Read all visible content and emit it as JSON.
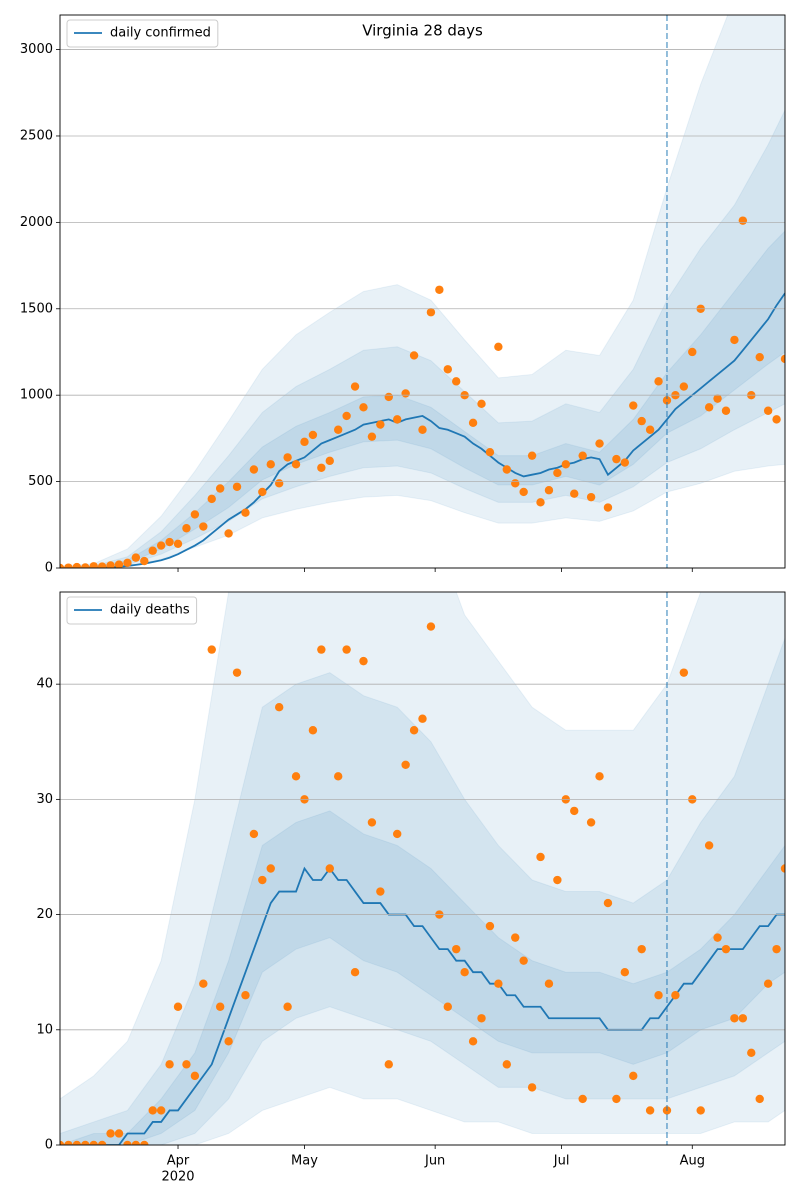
{
  "chart_data": [
    {
      "type": "line",
      "title": "Virginia 28 days",
      "x": [
        0,
        2,
        4,
        6,
        8,
        10,
        12,
        14,
        16,
        18,
        20,
        22,
        24,
        26,
        28,
        30,
        32,
        34,
        36,
        38,
        40,
        42,
        44,
        46,
        48,
        50,
        52,
        54,
        56,
        58,
        60,
        62,
        64,
        66,
        68,
        70,
        72,
        74,
        76,
        78,
        80,
        82,
        84,
        86,
        88,
        90,
        92,
        94,
        96,
        98,
        100,
        102,
        104,
        106,
        108,
        110,
        112,
        114,
        116,
        118,
        120,
        122,
        124,
        126,
        128,
        130,
        132,
        134,
        136,
        138,
        140,
        142,
        144,
        146,
        148,
        150,
        152,
        154,
        156,
        158,
        160,
        162,
        164,
        166,
        168,
        170,
        172
      ],
      "series": [
        {
          "name": "daily confirmed",
          "color": "#1f77b4",
          "values": [
            0,
            0,
            1,
            1,
            2,
            3,
            5,
            8,
            12,
            18,
            25,
            35,
            45,
            60,
            80,
            105,
            130,
            160,
            200,
            240,
            280,
            310,
            340,
            380,
            430,
            480,
            560,
            600,
            620,
            640,
            680,
            720,
            740,
            760,
            780,
            800,
            830,
            840,
            850,
            860,
            840,
            860,
            870,
            880,
            850,
            810,
            800,
            780,
            760,
            720,
            690,
            650,
            610,
            580,
            550,
            530,
            540,
            550,
            570,
            580,
            600,
            610,
            630,
            640,
            630,
            540,
            580,
            620,
            680,
            720,
            760,
            800,
            860,
            920,
            960,
            1000,
            1040,
            1080,
            1120,
            1160,
            1200,
            1260,
            1320,
            1380,
            1440,
            1520,
            1590
          ]
        }
      ],
      "observed": {
        "color": "#ff7f0e",
        "values": [
          0,
          2,
          5,
          3,
          10,
          8,
          15,
          20,
          30,
          60,
          40,
          100,
          130,
          150,
          140,
          230,
          310,
          240,
          400,
          460,
          200,
          470,
          320,
          570,
          440,
          600,
          490,
          640,
          600,
          730,
          770,
          580,
          620,
          800,
          880,
          1050,
          930,
          760,
          830,
          990,
          860,
          1010,
          1230,
          800,
          1480,
          1610,
          1150,
          1080,
          1000,
          840,
          950,
          670,
          1280,
          570,
          490,
          440,
          650,
          380,
          450,
          550,
          600,
          430,
          650,
          410,
          720,
          350,
          630,
          610,
          940,
          850,
          800,
          1080,
          970,
          1000,
          1050,
          1250,
          1500,
          930,
          980,
          910,
          1320,
          2010,
          1000,
          1220,
          910,
          860,
          1210
        ]
      },
      "bands": {
        "color": "#1f77b4",
        "x": [
          0,
          8,
          16,
          24,
          32,
          40,
          48,
          56,
          64,
          72,
          80,
          88,
          96,
          104,
          112,
          120,
          128,
          136,
          144,
          152,
          160,
          168,
          172
        ],
        "levels": [
          {
            "lower": [
              0,
              0,
              8,
              50,
              120,
              190,
              290,
              340,
              380,
              410,
              420,
              390,
              320,
              260,
              260,
              290,
              270,
              330,
              440,
              490,
              560,
              590,
              600
            ],
            "upper": [
              10,
              25,
              110,
              300,
              560,
              850,
              1150,
              1350,
              1480,
              1600,
              1640,
              1550,
              1320,
              1100,
              1120,
              1260,
              1230,
              1550,
              2200,
              2800,
              3300,
              3600,
              3800
            ]
          },
          {
            "lower": [
              0,
              2,
              18,
              80,
              170,
              270,
              400,
              470,
              530,
              580,
              590,
              550,
              460,
              380,
              380,
              420,
              380,
              470,
              610,
              690,
              800,
              900,
              950
            ],
            "upper": [
              5,
              12,
              65,
              210,
              420,
              650,
              900,
              1050,
              1150,
              1260,
              1280,
              1200,
              1020,
              840,
              850,
              950,
              900,
              1150,
              1550,
              1850,
              2100,
              2450,
              2650
            ]
          },
          {
            "lower": [
              0,
              4,
              28,
              110,
              225,
              350,
              510,
              600,
              670,
              730,
              740,
              690,
              580,
              480,
              480,
              530,
              480,
              600,
              780,
              880,
              1030,
              1180,
              1250
            ],
            "upper": [
              2,
              7,
              45,
              160,
              320,
              500,
              700,
              820,
              900,
              990,
              1000,
              930,
              790,
              650,
              650,
              720,
              670,
              860,
              1130,
              1350,
              1600,
              1850,
              1950
            ]
          }
        ]
      },
      "vline_x": 144,
      "xlim": [
        0,
        172
      ],
      "xticks": [
        28,
        58,
        89,
        119,
        150
      ],
      "ylim": [
        0,
        3200
      ],
      "yticks": [
        0,
        500,
        1000,
        1500,
        2000,
        2500,
        3000
      ],
      "grid": true,
      "legend": "upper left"
    },
    {
      "type": "line",
      "x": [
        0,
        2,
        4,
        6,
        8,
        10,
        12,
        14,
        16,
        18,
        20,
        22,
        24,
        26,
        28,
        30,
        32,
        34,
        36,
        38,
        40,
        42,
        44,
        46,
        48,
        50,
        52,
        54,
        56,
        58,
        60,
        62,
        64,
        66,
        68,
        70,
        72,
        74,
        76,
        78,
        80,
        82,
        84,
        86,
        88,
        90,
        92,
        94,
        96,
        98,
        100,
        102,
        104,
        106,
        108,
        110,
        112,
        114,
        116,
        118,
        120,
        122,
        124,
        126,
        128,
        130,
        132,
        134,
        136,
        138,
        140,
        142,
        144,
        146,
        148,
        150,
        152,
        154,
        156,
        158,
        160,
        162,
        164,
        166,
        168,
        170,
        172
      ],
      "series": [
        {
          "name": "daily deaths",
          "color": "#1f77b4",
          "values": [
            0,
            0,
            0,
            0,
            0,
            0,
            0,
            0,
            1,
            1,
            1,
            2,
            2,
            3,
            3,
            4,
            5,
            6,
            7,
            9,
            11,
            13,
            15,
            17,
            19,
            21,
            22,
            22,
            22,
            24,
            23,
            23,
            24,
            23,
            23,
            22,
            21,
            21,
            21,
            20,
            20,
            20,
            19,
            19,
            18,
            17,
            17,
            16,
            16,
            15,
            15,
            14,
            14,
            13,
            13,
            12,
            12,
            12,
            11,
            11,
            11,
            11,
            11,
            11,
            11,
            10,
            10,
            10,
            10,
            10,
            11,
            11,
            12,
            13,
            14,
            14,
            15,
            16,
            17,
            17,
            17,
            17,
            18,
            19,
            19,
            20,
            20
          ]
        }
      ],
      "observed": {
        "color": "#ff7f0e",
        "values": [
          0,
          0,
          0,
          0,
          0,
          0,
          1,
          1,
          0,
          0,
          0,
          3,
          3,
          7,
          12,
          7,
          6,
          14,
          43,
          12,
          9,
          41,
          13,
          27,
          23,
          24,
          38,
          12,
          32,
          30,
          36,
          43,
          24,
          32,
          43,
          15,
          42,
          28,
          22,
          7,
          27,
          33,
          36,
          37,
          45,
          20,
          12,
          17,
          15,
          9,
          11,
          19,
          14,
          7,
          18,
          16,
          5,
          25,
          14,
          23,
          30,
          29,
          4,
          28,
          32,
          21,
          4,
          15,
          6,
          17,
          3,
          13,
          3,
          13,
          41,
          30,
          3,
          26,
          18,
          17,
          11,
          11,
          8,
          4,
          14,
          17,
          24
        ]
      },
      "bands": {
        "color": "#1f77b4",
        "x": [
          0,
          8,
          16,
          24,
          32,
          40,
          48,
          56,
          64,
          72,
          80,
          88,
          96,
          104,
          112,
          120,
          128,
          136,
          144,
          152,
          160,
          168,
          172
        ],
        "levels": [
          {
            "lower": [
              0,
              0,
              0,
              0,
              0,
              1,
              3,
              4,
              5,
              4,
              4,
              3,
              2,
              2,
              1,
              1,
              1,
              1,
              1,
              1,
              2,
              2,
              3
            ],
            "upper": [
              4,
              6,
              9,
              16,
              30,
              48,
              60,
              62,
              62,
              60,
              58,
              54,
              46,
              42,
              38,
              36,
              36,
              36,
              40,
              48,
              55,
              60,
              62
            ]
          },
          {
            "lower": [
              0,
              0,
              0,
              0,
              1,
              4,
              9,
              11,
              12,
              11,
              10,
              9,
              7,
              5,
              5,
              4,
              4,
              4,
              4,
              5,
              6,
              8,
              9
            ],
            "upper": [
              1,
              2,
              3,
              7,
              14,
              26,
              38,
              40,
              41,
              39,
              38,
              35,
              30,
              26,
              23,
              22,
              22,
              21,
              23,
              28,
              32,
              40,
              44
            ]
          },
          {
            "lower": [
              0,
              0,
              0,
              1,
              3,
              8,
              15,
              17,
              18,
              16,
              15,
              13,
              11,
              9,
              8,
              8,
              8,
              7,
              8,
              10,
              11,
              14,
              15
            ],
            "upper": [
              0,
              1,
              1,
              4,
              8,
              16,
              26,
              28,
              29,
              27,
              26,
              24,
              21,
              18,
              16,
              15,
              15,
              14,
              15,
              17,
              20,
              24,
              26
            ]
          }
        ]
      },
      "vline_x": 144,
      "xlim": [
        0,
        172
      ],
      "xticks": [
        {
          "value": 28,
          "label": "Apr",
          "sublabel": "2020"
        },
        {
          "value": 58,
          "label": "May"
        },
        {
          "value": 89,
          "label": "Jun"
        },
        {
          "value": 119,
          "label": "Jul"
        },
        {
          "value": 150,
          "label": "Aug"
        }
      ],
      "ylim": [
        0,
        48
      ],
      "yticks": [
        0,
        10,
        20,
        30,
        40
      ],
      "grid": true,
      "legend": "upper left"
    }
  ]
}
